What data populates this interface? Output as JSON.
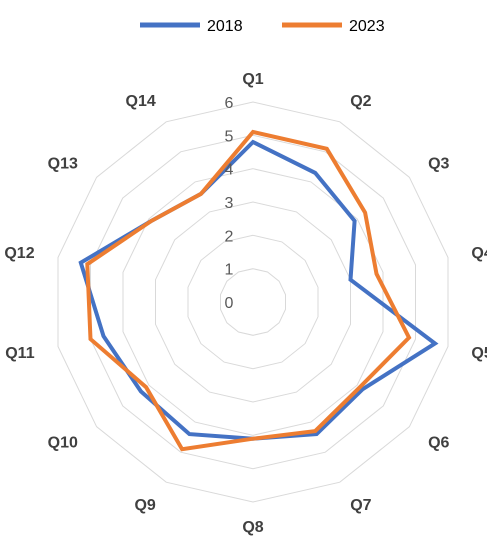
{
  "chart_data": {
    "type": "radar",
    "title": "",
    "categories": [
      "Q1",
      "Q2",
      "Q3",
      "Q4",
      "Q5",
      "Q6",
      "Q7",
      "Q8",
      "Q9",
      "Q10",
      "Q11",
      "Q12",
      "Q13",
      "Q14"
    ],
    "rticks": [
      "0",
      "1",
      "2",
      "3",
      "4",
      "5",
      "6"
    ],
    "rlim": [
      0,
      6
    ],
    "grid": true,
    "legend_position": "top",
    "series": [
      {
        "name": "2018",
        "color": "#4472C4",
        "values": [
          4.8,
          4.3,
          3.9,
          3.0,
          5.6,
          4.2,
          4.4,
          4.1,
          4.4,
          4.3,
          4.6,
          5.3,
          3.9,
          3.6
        ]
      },
      {
        "name": "2023",
        "color": "#ED7D31",
        "values": [
          5.1,
          5.1,
          4.3,
          3.8,
          4.8,
          4.1,
          4.3,
          4.1,
          4.9,
          4.1,
          5.0,
          5.1,
          3.9,
          3.6
        ]
      }
    ]
  }
}
